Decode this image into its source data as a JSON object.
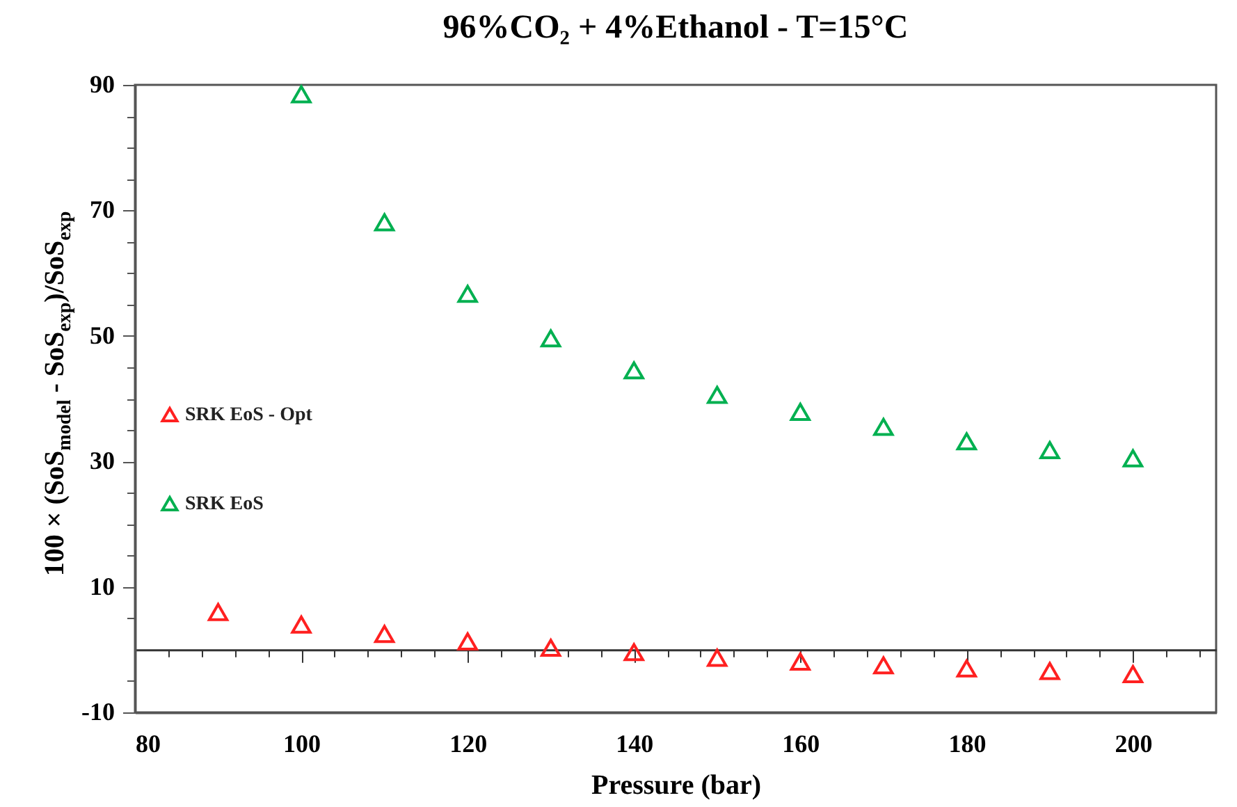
{
  "chart_data": {
    "type": "scatter",
    "title": "96%CO₂ + 4%Ethanol - T=15°C",
    "xlabel": "Pressure (bar)",
    "ylabel": "100 × (SoS$_{model}$ - SoS$_{exp}$)/SoS$_{exp}$",
    "x": [
      90,
      100,
      110,
      120,
      130,
      140,
      150,
      160,
      170,
      180,
      190,
      200
    ],
    "series": [
      {
        "name": "SRK EoS - Opt",
        "color": "#ff2020",
        "values": [
          6.0,
          4.0,
          2.5,
          1.3,
          0.3,
          -0.4,
          -1.3,
          -1.9,
          -2.5,
          -3.0,
          -3.4,
          -3.9
        ]
      },
      {
        "name": "SRK EoS",
        "color": "#00b050",
        "values": [
          null,
          88.5,
          68.1,
          56.7,
          49.6,
          44.5,
          40.6,
          37.9,
          35.5,
          33.2,
          31.8,
          30.5
        ]
      }
    ],
    "xlim": [
      80,
      210
    ],
    "xticks": [
      80,
      {
        "value": 84,
        "label": null
      },
      {
        "value": 88,
        "label": null
      },
      {
        "value": 92,
        "label": null
      },
      {
        "value": 96,
        "label": null
      },
      100,
      {
        "value": 104,
        "label": null
      },
      {
        "value": 108,
        "label": null
      },
      {
        "value": 112,
        "label": null
      },
      {
        "value": 116,
        "label": null
      },
      120,
      {
        "value": 124,
        "label": null
      },
      {
        "value": 128,
        "label": null
      },
      {
        "value": 132,
        "label": null
      },
      {
        "value": 136,
        "label": null
      },
      140,
      {
        "value": 144,
        "label": null
      },
      {
        "value": 148,
        "label": null
      },
      {
        "value": 152,
        "label": null
      },
      {
        "value": 156,
        "label": null
      },
      160,
      {
        "value": 164,
        "label": null
      },
      {
        "value": 168,
        "label": null
      },
      {
        "value": 172,
        "label": null
      },
      {
        "value": 176,
        "label": null
      },
      180,
      {
        "value": 184,
        "label": null
      },
      {
        "value": 188,
        "label": null
      },
      {
        "value": 192,
        "label": null
      },
      {
        "value": 196,
        "label": null
      },
      200,
      {
        "value": 204,
        "label": null
      },
      {
        "value": 208,
        "label": null
      }
    ],
    "ylim": [
      -10,
      90
    ],
    "yticks": [
      -10,
      {
        "value": -5,
        "label": null
      },
      {
        "value": 5,
        "label": null
      },
      10,
      {
        "value": 15,
        "label": null
      },
      {
        "value": 20,
        "label": null
      },
      {
        "value": 25,
        "label": null
      },
      30,
      {
        "value": 35,
        "label": null
      },
      {
        "value": 40,
        "label": null
      },
      {
        "value": 45,
        "label": null
      },
      50,
      {
        "value": 55,
        "label": null
      },
      {
        "value": 60,
        "label": null
      },
      {
        "value": 65,
        "label": null
      },
      70,
      {
        "value": 75,
        "label": null
      },
      {
        "value": 80,
        "label": null
      },
      {
        "value": 85,
        "label": null
      },
      90
    ],
    "marker": "triangle",
    "legend": "left",
    "grid": false
  }
}
